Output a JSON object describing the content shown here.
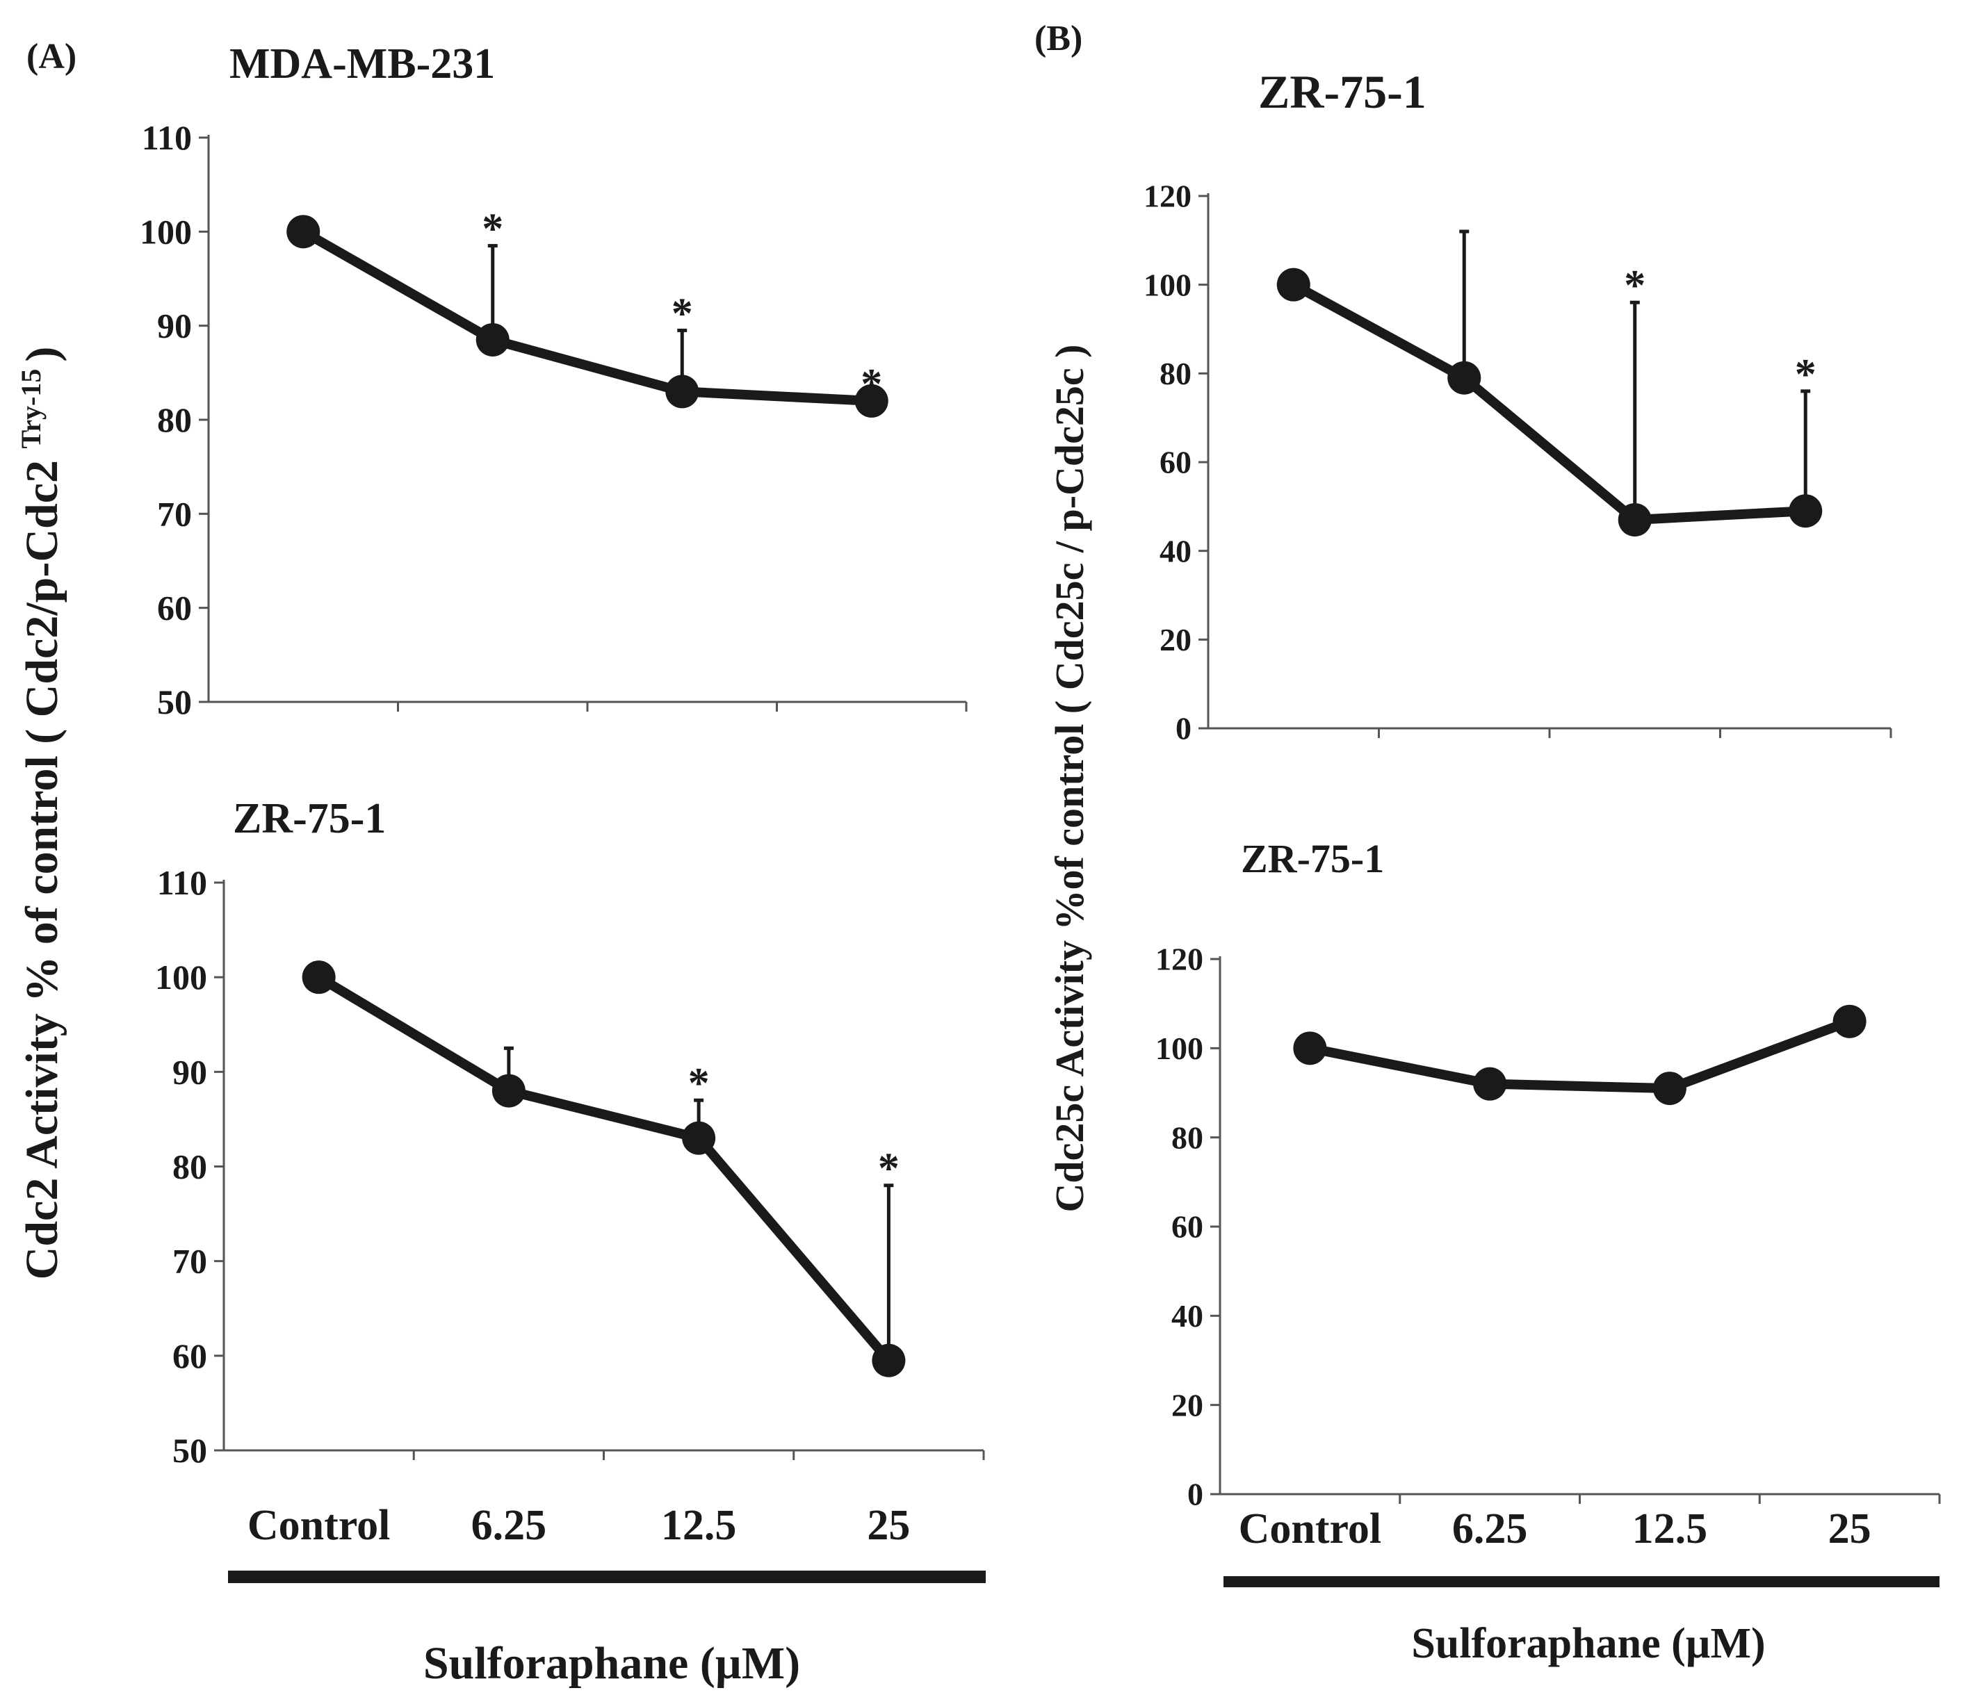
{
  "colors": {
    "ink": "#1a1a1a",
    "background": "#ffffff"
  },
  "panel_a": {
    "label": "(A)",
    "ylabel_main": "Cdc2 Activity % of control ( Cdc2/p-Cdc2 ",
    "ylabel_sup": "Try-15",
    "ylabel_close": ")",
    "xlabel": "Sulforaphane (µM)"
  },
  "panel_b": {
    "label": "(B)",
    "ylabel": "Cdc25c Activity %of control ( Cdc25c / p-Cdc25c )",
    "xlabel": "Sulforaphane (µM)"
  },
  "chart_data": [
    {
      "type": "line",
      "title": "MDA-MB-231",
      "categories": [
        "Control",
        "6.25",
        "12.5",
        "25"
      ],
      "series": [
        {
          "name": "Cdc2 activity",
          "values": [
            100,
            88.5,
            83,
            82
          ]
        }
      ],
      "error_bars_upper": [
        null,
        98.5,
        89.5,
        null
      ],
      "significance": [
        "",
        "*",
        "*",
        "*"
      ],
      "ylim": [
        50,
        110
      ],
      "yticks": [
        50,
        60,
        70,
        80,
        90,
        100,
        110
      ],
      "ylabel": "Cdc2 Activity % of control ( Cdc2/p-Cdc2 Try-15 )",
      "xlabel": "Sulforaphane (µM)",
      "show_category_labels": false
    },
    {
      "type": "line",
      "title": "ZR-75-1",
      "categories": [
        "Control",
        "6.25",
        "12.5",
        "25"
      ],
      "series": [
        {
          "name": "Cdc2 activity",
          "values": [
            100,
            88,
            83,
            59.5
          ]
        }
      ],
      "error_bars_upper": [
        null,
        92.5,
        87,
        78
      ],
      "significance": [
        "",
        "",
        "*",
        "*"
      ],
      "ylim": [
        50,
        110
      ],
      "yticks": [
        50,
        60,
        70,
        80,
        90,
        100,
        110
      ],
      "ylabel": "Cdc2 Activity % of control ( Cdc2/p-Cdc2 Try-15 )",
      "xlabel": "Sulforaphane (µM)",
      "show_category_labels": true
    },
    {
      "type": "line",
      "title": "ZR-75-1",
      "categories": [
        "Control",
        "6.25",
        "12.5",
        "25"
      ],
      "series": [
        {
          "name": "Cdc25c activity",
          "values": [
            100,
            79,
            47,
            49
          ]
        }
      ],
      "error_bars_upper": [
        null,
        112,
        96,
        76
      ],
      "significance": [
        "",
        "",
        "*",
        "*"
      ],
      "ylim": [
        0,
        120
      ],
      "yticks": [
        0,
        20,
        40,
        60,
        80,
        100,
        120
      ],
      "ylabel": "Cdc25c Activity %of control ( Cdc25c / p-Cdc25c )",
      "xlabel": "Sulforaphane (µM)",
      "show_category_labels": false
    },
    {
      "type": "line",
      "title": "ZR-75-1",
      "categories": [
        "Control",
        "6.25",
        "12.5",
        "25"
      ],
      "series": [
        {
          "name": "Cdc25c activity",
          "values": [
            100,
            92,
            91,
            106
          ]
        }
      ],
      "error_bars_upper": [
        null,
        null,
        null,
        null
      ],
      "significance": [
        "",
        "",
        "",
        ""
      ],
      "ylim": [
        0,
        120
      ],
      "yticks": [
        0,
        20,
        40,
        60,
        80,
        100,
        120
      ],
      "ylabel": "Cdc25c Activity %of control ( Cdc25c / p-Cdc25c )",
      "xlabel": "Sulforaphane (µM)",
      "show_category_labels": true
    }
  ]
}
